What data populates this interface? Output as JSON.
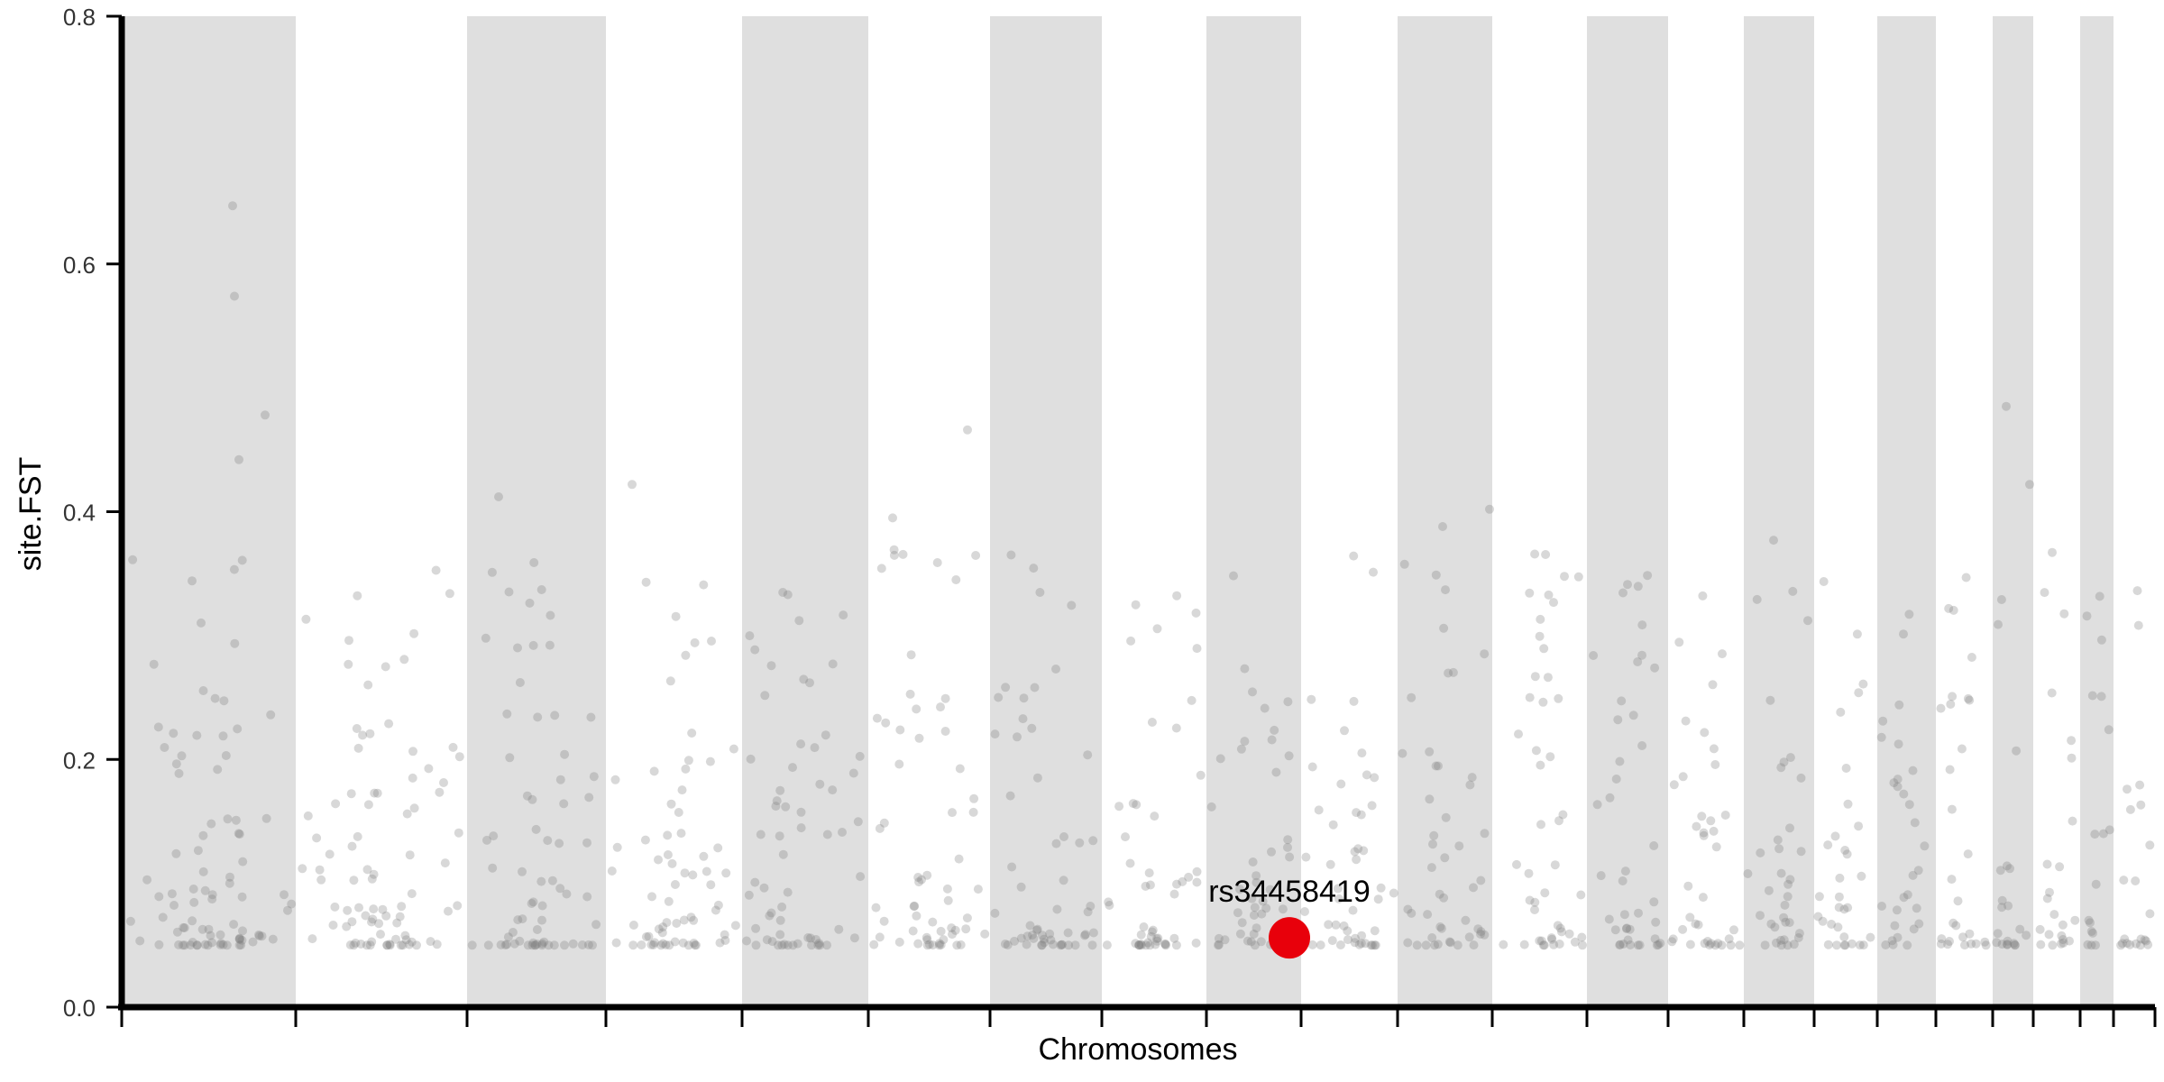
{
  "chart_data": {
    "type": "scatter",
    "title": "",
    "xlabel": "Chromosomes",
    "ylabel": "site.FST",
    "ylim": [
      0,
      0.8
    ],
    "yticks": [
      "0.0",
      "0.2",
      "0.4",
      "0.6",
      "0.8"
    ],
    "grid": false,
    "legend": "none",
    "shaded_bands_alternate": true,
    "highlight": {
      "label": "rs34458419",
      "y": 0.056,
      "color": "#e8000b"
    },
    "point_color": "#7f7f7f",
    "band_color": "#dfdfdf"
  }
}
